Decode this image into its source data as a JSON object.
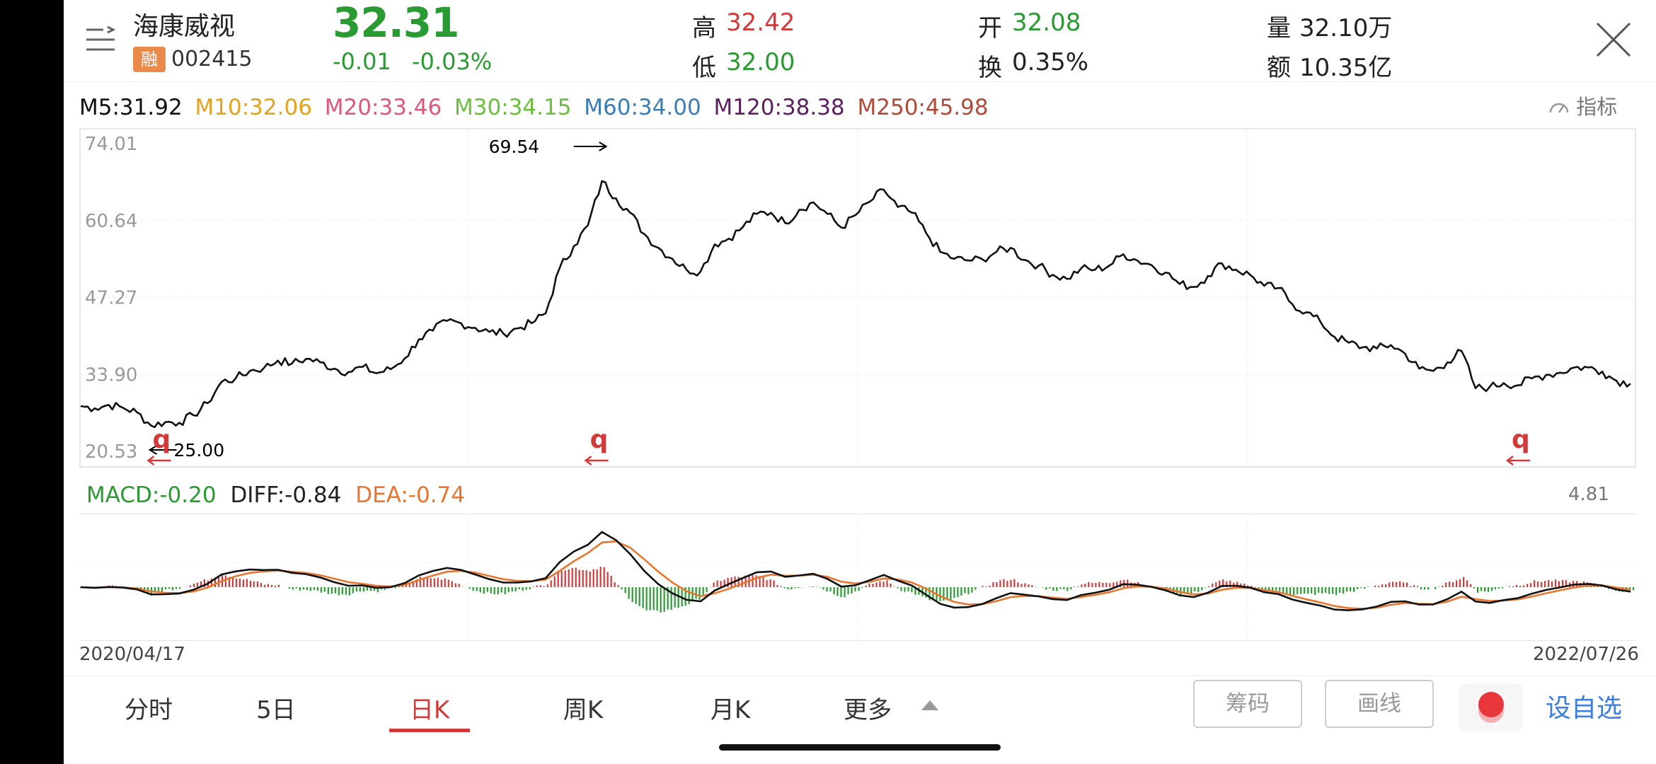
{
  "stock": {
    "name": "海康威视",
    "rong_badge": "融",
    "code": "002415",
    "price": "32.31",
    "change": "-0.01",
    "change_pct": "-0.03%",
    "high_label": "高",
    "high": "32.42",
    "low_label": "低",
    "low": "32.00",
    "open_label": "开",
    "open": "32.08",
    "turnover_label": "换",
    "turnover": "0.35%",
    "volume_label": "量",
    "volume": "32.10万",
    "amount_label": "额",
    "amount": "10.35亿"
  },
  "ma_legend": {
    "m5": "M5:31.92",
    "m10": "M10:32.06",
    "m20": "M20:33.46",
    "m30": "M30:34.15",
    "m60": "M60:34.00",
    "m120": "M120:38.38",
    "m250": "M250:45.98"
  },
  "indicator_button": "指标",
  "macd_legend": {
    "macd": "MACD:-0.20",
    "diff": "DIFF:-0.84",
    "dea": "DEA:-0.74",
    "max": "4.81"
  },
  "dates": {
    "start": "2020/04/17",
    "end": "2022/07/26"
  },
  "tabs": [
    {
      "label": "分时"
    },
    {
      "label": "5日"
    },
    {
      "label": "日K"
    },
    {
      "label": "周K"
    },
    {
      "label": "月K"
    },
    {
      "label": "更多"
    }
  ],
  "buttons": {
    "chips": "筹码",
    "draw": "画线",
    "add_watch": "设自选"
  },
  "colors": {
    "up": "#d23a3a",
    "down": "#2a9a33",
    "price_line": "#111111",
    "diff_line": "#111111",
    "dea_line": "#e8762e",
    "m5": "#111111",
    "m10": "#e3a21a",
    "m20": "#e0567a",
    "m30": "#6cbf3c",
    "m60": "#3a7db5",
    "m120": "#5b1f5e",
    "m250": "#b04a3a"
  },
  "chart_data": {
    "type": "line",
    "title": "",
    "ylim": [
      20.53,
      74.01
    ],
    "y_ticks": [
      "74.01",
      "60.64",
      "47.27",
      "33.90",
      "20.53"
    ],
    "x_start": "2020/04/17",
    "x_end": "2022/07/26",
    "annotations": {
      "high": "69.54",
      "low": "25.00",
      "q_marks": [
        "q",
        "q",
        "q"
      ]
    },
    "series": [
      {
        "values": [
          28.4,
          28.0,
          28.6,
          28.1,
          27.3,
          25.0,
          25.6,
          25.5,
          26.8,
          28.9,
          32.6,
          33.2,
          34.5,
          35.0,
          36.3,
          35.8,
          36.6,
          36.0,
          34.9,
          34.3,
          35.2,
          34.1,
          34.8,
          36.7,
          40.0,
          41.5,
          43.2,
          42.8,
          42.0,
          41.3,
          41.0,
          41.9,
          42.8,
          44.5,
          52.4,
          56.2,
          59.8,
          67.5,
          64.5,
          62.0,
          58.3,
          55.9,
          54.0,
          52.1,
          51.8,
          56.5,
          57.5,
          59.5,
          61.8,
          62.0,
          60.2,
          62.5,
          63.8,
          61.8,
          59.4,
          61.6,
          63.9,
          66.0,
          63.0,
          62.0,
          58.5,
          55.2,
          54.0,
          53.7,
          53.9,
          55.2,
          55.9,
          53.8,
          52.8,
          51.2,
          50.5,
          52.3,
          52.1,
          52.8,
          54.8,
          53.7,
          52.9,
          51.6,
          49.6,
          49.1,
          51.0,
          53.2,
          52.1,
          51.2,
          49.3,
          48.9,
          46.1,
          44.7,
          43.0,
          40.4,
          39.4,
          38.6,
          38.4,
          39.0,
          37.5,
          34.9,
          34.5,
          36.0,
          38.0,
          31.5,
          31.7,
          32.4,
          32.0,
          33.2,
          33.8,
          34.2,
          35.1,
          35.1,
          34.4,
          32.8,
          32.3
        ]
      }
    ]
  }
}
